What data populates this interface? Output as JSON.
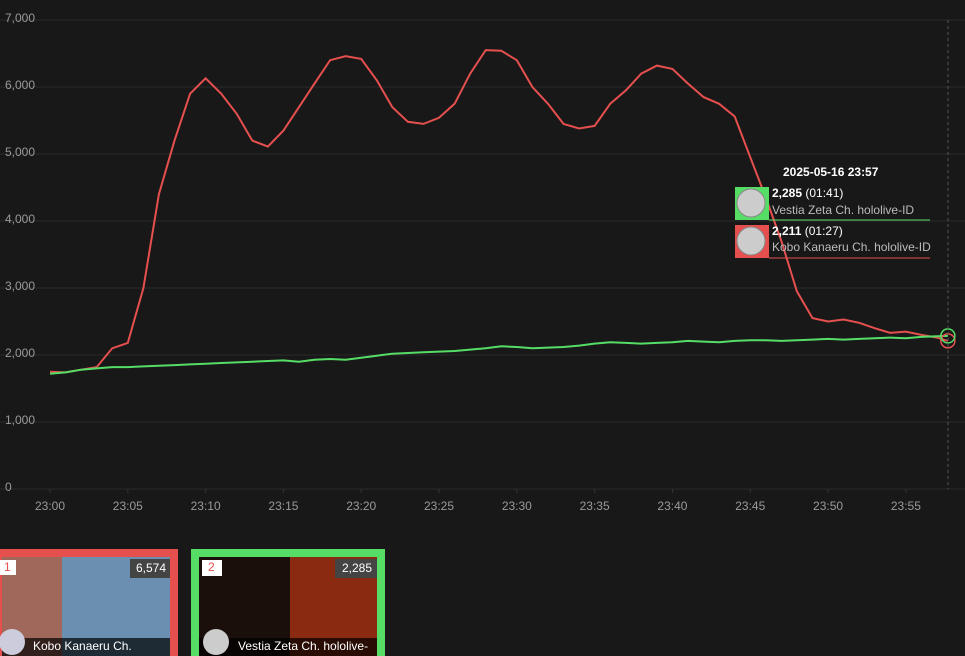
{
  "chart_data": {
    "type": "line",
    "x": [
      0,
      1,
      2,
      3,
      4,
      5,
      6,
      7,
      8,
      9,
      10,
      11,
      12,
      13,
      14,
      15,
      16,
      17,
      18,
      19,
      20,
      21,
      22,
      23,
      24,
      25,
      26,
      27,
      28,
      29,
      30,
      31,
      32,
      33,
      34,
      35,
      36,
      37,
      38,
      39,
      40,
      41,
      42,
      43,
      44,
      45,
      46,
      47,
      48,
      49,
      50,
      51,
      52,
      53,
      54,
      55,
      56,
      57,
      57.7
    ],
    "xlim": [
      0,
      58.8
    ],
    "xticks": [
      {
        "value": 0,
        "label": "23:00"
      },
      {
        "value": 5,
        "label": "23:05"
      },
      {
        "value": 10,
        "label": "23:10"
      },
      {
        "value": 15,
        "label": "23:15"
      },
      {
        "value": 20,
        "label": "23:20"
      },
      {
        "value": 25,
        "label": "23:25"
      },
      {
        "value": 30,
        "label": "23:30"
      },
      {
        "value": 35,
        "label": "23:35"
      },
      {
        "value": 40,
        "label": "23:40"
      },
      {
        "value": 45,
        "label": "23:45"
      },
      {
        "value": 50,
        "label": "23:50"
      },
      {
        "value": 55,
        "label": "23:55"
      }
    ],
    "ylim": [
      0,
      7000
    ],
    "yticks": [
      0,
      {
        "value": 1000,
        "label": "1,000"
      },
      {
        "value": 2000,
        "label": "2,000"
      },
      {
        "value": 3000,
        "label": "3,000"
      },
      {
        "value": 4000,
        "label": "4,000"
      },
      {
        "value": 5000,
        "label": "5,000"
      },
      {
        "value": 6000,
        "label": "6,000"
      },
      {
        "value": 7000,
        "label": "7,000"
      }
    ],
    "grid": true,
    "series": [
      {
        "name": "Kobo Kanaeru Ch. hololive-ID",
        "color": "#e5504f",
        "values": [
          1750,
          1740,
          1780,
          1820,
          2100,
          2180,
          3000,
          4400,
          5200,
          5900,
          6130,
          5900,
          5600,
          5200,
          5110,
          5350,
          5700,
          6050,
          6400,
          6460,
          6420,
          6100,
          5700,
          5480,
          5450,
          5540,
          5750,
          6200,
          6550,
          6540,
          6400,
          6000,
          5750,
          5450,
          5380,
          5420,
          5750,
          5950,
          6200,
          6320,
          6270,
          6050,
          5850,
          5750,
          5560,
          4950,
          4350,
          3700,
          2950,
          2550,
          2500,
          2530,
          2480,
          2400,
          2330,
          2350,
          2300,
          2260,
          2211
        ]
      },
      {
        "name": "Vestia Zeta Ch. hololive-ID",
        "color": "#55dd66",
        "values": [
          1720,
          1740,
          1780,
          1800,
          1820,
          1820,
          1830,
          1840,
          1850,
          1860,
          1870,
          1880,
          1890,
          1900,
          1910,
          1920,
          1900,
          1930,
          1940,
          1930,
          1960,
          1990,
          2020,
          2030,
          2040,
          2050,
          2060,
          2080,
          2100,
          2130,
          2120,
          2100,
          2110,
          2120,
          2140,
          2170,
          2190,
          2180,
          2170,
          2180,
          2190,
          2210,
          2200,
          2190,
          2210,
          2220,
          2220,
          2210,
          2220,
          2230,
          2240,
          2230,
          2240,
          2250,
          2260,
          2250,
          2270,
          2280,
          2285
        ]
      }
    ]
  },
  "tooltip": {
    "date": "2025-05-16 23:57",
    "entries": [
      {
        "value": "2,285",
        "duration": "(01:41)",
        "name": "Vestia Zeta Ch. hololive-ID"
      },
      {
        "value": "2,211",
        "duration": "(01:27)",
        "name": "Kobo Kanaeru Ch. hololive-ID"
      }
    ]
  },
  "cards": [
    {
      "rank": "1",
      "viewers": "6,574",
      "name": "Kobo Kanaeru Ch."
    },
    {
      "rank": "2",
      "viewers": "2,285",
      "name": "Vestia Zeta Ch. hololive-"
    }
  ]
}
